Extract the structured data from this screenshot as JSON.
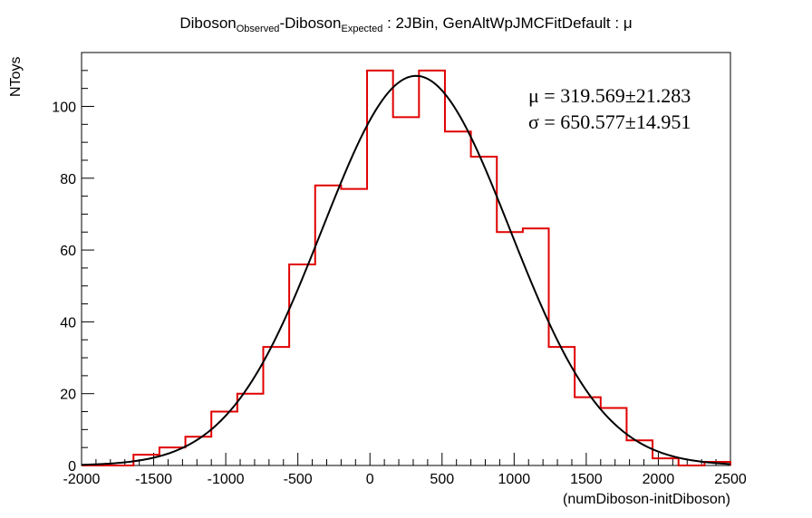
{
  "chart_data": {
    "type": "bar",
    "title": {
      "pre": "Diboson",
      "sub1": "Observed",
      "mid": "-Diboson",
      "sub2": "Expected",
      "post": " : 2JBin, GenAltWpJMCFitDefault : μ"
    },
    "xlabel": "(numDiboson-initDiboson)",
    "ylabel": "NToys",
    "xlim": [
      -2000,
      2500
    ],
    "ylim": [
      0,
      115
    ],
    "x_ticks": [
      -2000,
      -1500,
      -1000,
      -500,
      0,
      500,
      1000,
      1500,
      2000,
      2500
    ],
    "y_ticks": [
      0,
      20,
      40,
      60,
      80,
      100
    ],
    "bin_edges": [
      -2000,
      -1820,
      -1640,
      -1460,
      -1280,
      -1100,
      -920,
      -740,
      -560,
      -380,
      -200,
      -20,
      160,
      340,
      520,
      700,
      880,
      1060,
      1240,
      1420,
      1600,
      1780,
      1960,
      2140,
      2320,
      2500
    ],
    "series": [
      {
        "kind": "histogram",
        "color": "#e00000",
        "values": [
          0,
          0,
          3,
          5,
          8,
          15,
          20,
          33,
          56,
          78,
          77,
          110,
          97,
          110,
          93,
          86,
          65,
          66,
          33,
          19,
          16,
          7,
          2,
          0,
          1
        ]
      },
      {
        "kind": "gaussian-fit",
        "color": "#000000",
        "amplitude": 108.5,
        "mean": 319.569,
        "sigma": 650.577
      }
    ],
    "stats": {
      "mu_line": "μ = 319.569±21.283",
      "sigma_line": "σ = 650.577±14.951"
    }
  }
}
